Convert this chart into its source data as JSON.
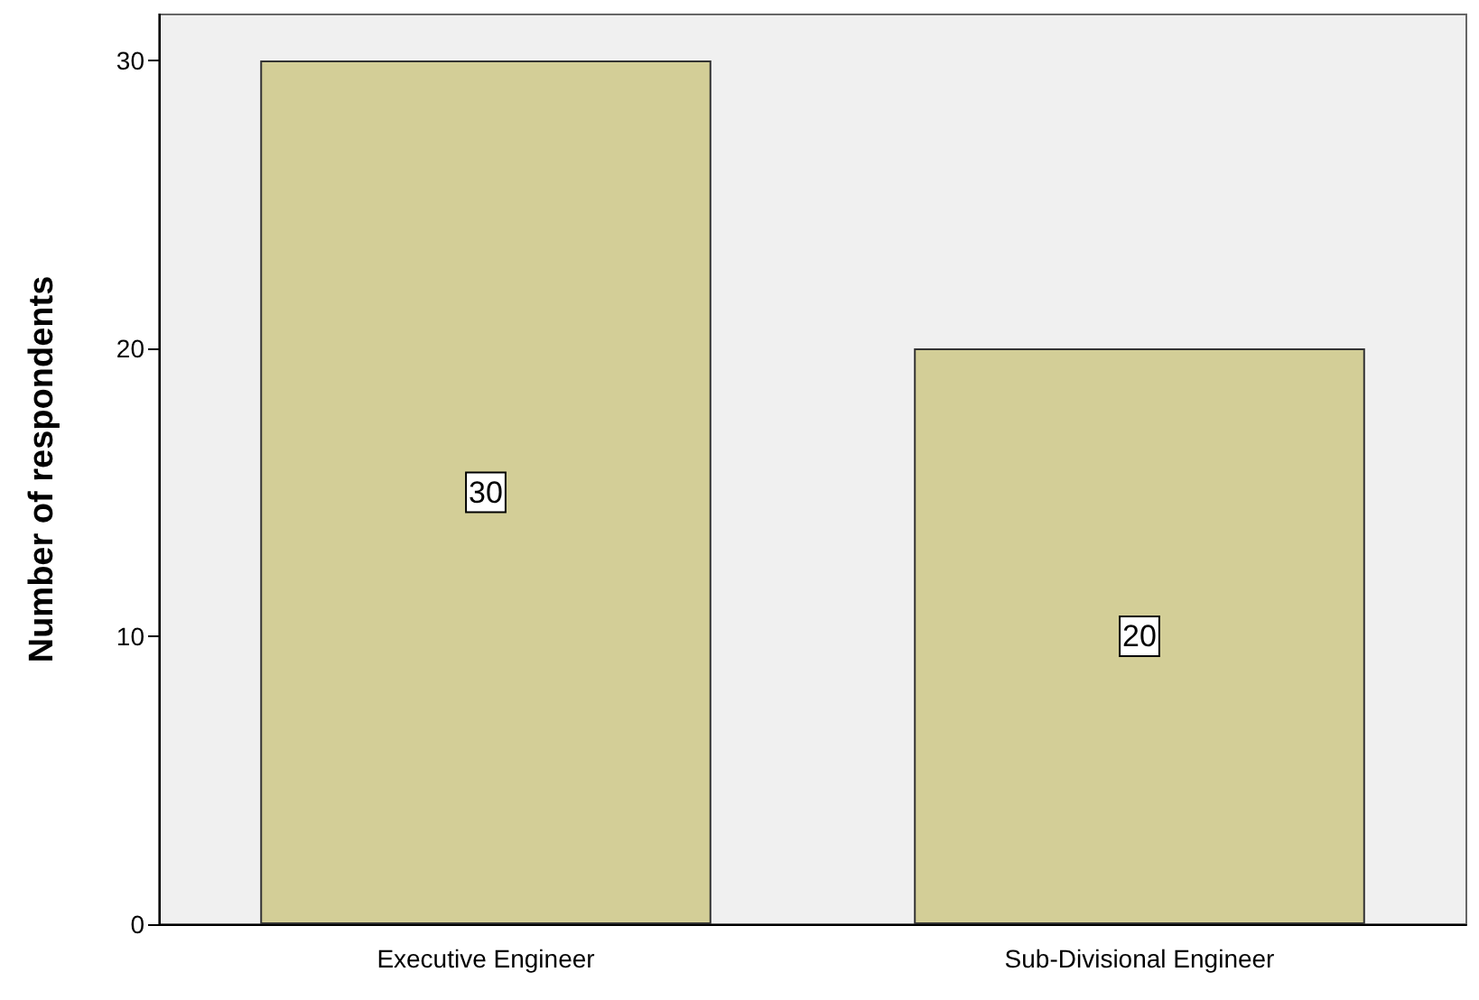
{
  "chart_data": {
    "type": "bar",
    "ylabel": "Number of respondents",
    "categories": [
      "Executive Engineer",
      "Sub-Divisional Engineer"
    ],
    "values": [
      30,
      20
    ],
    "color": "#d3ce97",
    "ylim": [
      0,
      31.6
    ],
    "yticks": [
      0,
      10,
      20,
      30
    ],
    "data_labels": true,
    "grid": false
  }
}
